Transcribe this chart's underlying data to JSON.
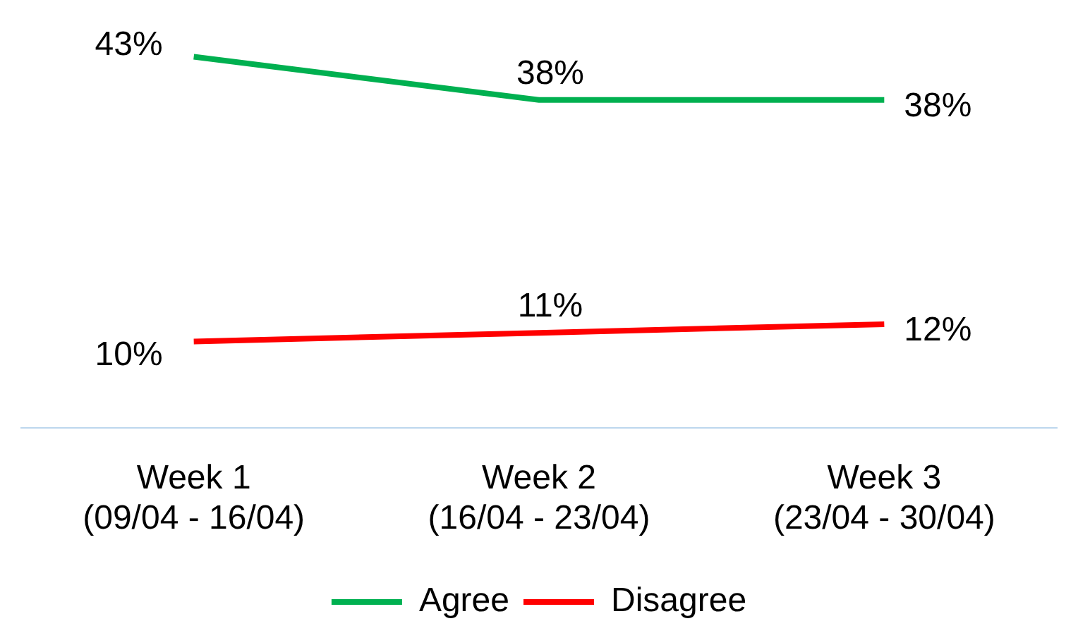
{
  "chart_data": {
    "type": "line",
    "categories": [
      "Week 1\n(09/04 - 16/04)",
      "Week 2\n(16/04 - 23/04)",
      "Week 3\n(23/04 - 30/04)"
    ],
    "series": [
      {
        "name": "Agree",
        "color": "#00b050",
        "values": [
          43,
          38,
          38
        ],
        "value_labels": [
          "43%",
          "38%",
          "38%"
        ]
      },
      {
        "name": "Disagree",
        "color": "#ff0000",
        "values": [
          10,
          11,
          12
        ],
        "value_labels": [
          "10%",
          "11%",
          "12%"
        ]
      }
    ],
    "tick_labels": "x",
    "legend": "bottom",
    "grid": false,
    "marker": "none",
    "line_style": "solid"
  }
}
